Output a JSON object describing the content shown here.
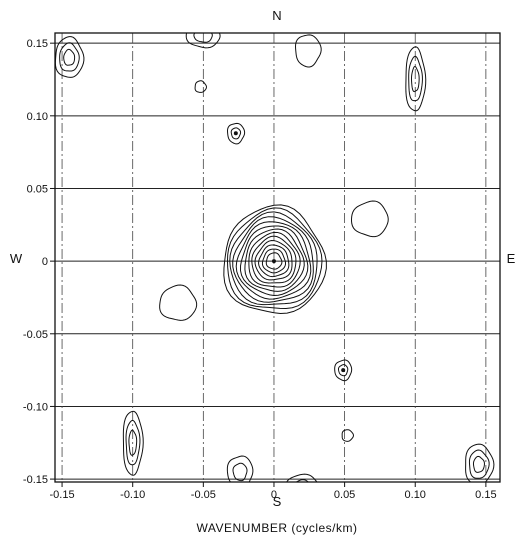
{
  "chart_data": {
    "type": "contour",
    "xlabel": "WAVENUMBER (cycles/km)",
    "x_range": [
      -0.155,
      0.16
    ],
    "y_range": [
      -0.152,
      0.157
    ],
    "x_ticks": [
      {
        "value": -0.15,
        "label": "-0.15"
      },
      {
        "value": -0.1,
        "label": "-0.10"
      },
      {
        "value": -0.05,
        "label": "-0.05"
      },
      {
        "value": 0,
        "label": "0"
      },
      {
        "value": 0.05,
        "label": "0.05"
      },
      {
        "value": 0.1,
        "label": "0.10"
      },
      {
        "value": 0.15,
        "label": "0.15"
      }
    ],
    "y_ticks": [
      {
        "value": 0.15,
        "label": "0.15"
      },
      {
        "value": 0.1,
        "label": "0.10"
      },
      {
        "value": 0.05,
        "label": "0.05"
      },
      {
        "value": 0,
        "label": "0"
      },
      {
        "value": -0.05,
        "label": "-0.05"
      },
      {
        "value": -0.1,
        "label": "-0.10"
      },
      {
        "value": -0.15,
        "label": "-0.15"
      }
    ],
    "horizontal_grid": "solid",
    "vertical_grid": "dash-dot",
    "directions": {
      "north": "N",
      "south": "S",
      "west": "W",
      "east": "E"
    },
    "peaks": [
      {
        "x": 0,
        "y": 0,
        "rx": 0.036,
        "ry": 0.037,
        "levels": 13,
        "center_dot": true
      },
      {
        "x": 0.1,
        "y": 0.125,
        "rx": 0.007,
        "ry": 0.022,
        "levels": 3
      },
      {
        "x": -0.1,
        "y": -0.125,
        "rx": 0.007,
        "ry": 0.022,
        "levels": 3
      },
      {
        "x": -0.027,
        "y": 0.088,
        "rx": 0.006,
        "ry": 0.007,
        "levels": 2,
        "center_dot": true
      },
      {
        "x": 0.049,
        "y": -0.075,
        "rx": 0.006,
        "ry": 0.007,
        "levels": 2,
        "center_dot": true
      },
      {
        "x": 0.068,
        "y": 0.029,
        "rx": 0.013,
        "ry": 0.012,
        "levels": 1
      },
      {
        "x": -0.068,
        "y": -0.029,
        "rx": 0.013,
        "ry": 0.012,
        "levels": 1
      },
      {
        "x": -0.052,
        "y": 0.12,
        "rx": 0.004,
        "ry": 0.004,
        "levels": 1
      },
      {
        "x": 0.052,
        "y": -0.12,
        "rx": 0.004,
        "ry": 0.004,
        "levels": 1
      },
      {
        "x": 0.024,
        "y": 0.145,
        "rx": 0.009,
        "ry": 0.011,
        "levels": 1
      },
      {
        "x": -0.024,
        "y": -0.145,
        "rx": 0.009,
        "ry": 0.011,
        "levels": 2
      },
      {
        "x": -0.05,
        "y": 0.155,
        "rx": 0.012,
        "ry": 0.008,
        "levels": 2
      },
      {
        "x": 0.02,
        "y": -0.155,
        "rx": 0.012,
        "ry": 0.008,
        "levels": 2
      },
      {
        "x": -0.145,
        "y": 0.14,
        "rx": 0.01,
        "ry": 0.014,
        "levels": 3
      },
      {
        "x": 0.145,
        "y": -0.14,
        "rx": 0.01,
        "ry": 0.014,
        "levels": 3
      }
    ]
  }
}
